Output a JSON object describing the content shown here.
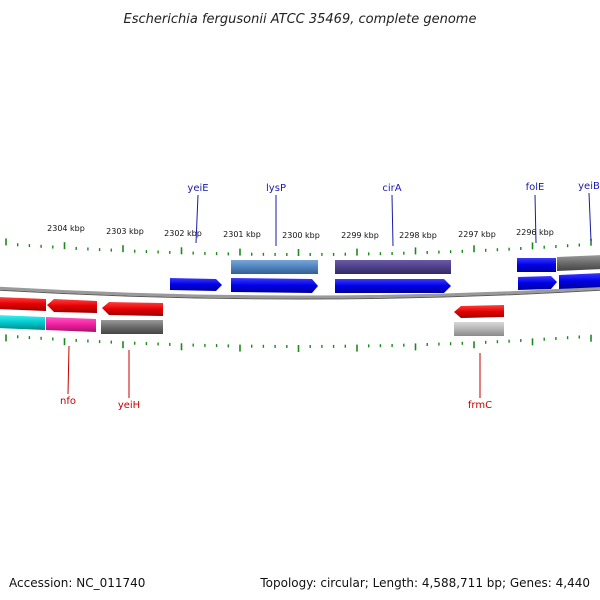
{
  "title": "Escherichia fergusonii ATCC 35469, complete genome",
  "accession": "Accession: NC_011740",
  "topology": "Topology: circular; Length: 4,588,711 bp; Genes: 4,440",
  "colors": {
    "forward_label": "#1a1aa8",
    "reverse_label": "#c40000",
    "tick": "#1a8a1a",
    "backbone": "#7a7a7a"
  },
  "kbp_labels": [
    "2304 kbp",
    "2303 kbp",
    "2302 kbp",
    "2301 kbp",
    "2300 kbp",
    "2299 kbp",
    "2298 kbp",
    "2297 kbp",
    "2296 kbp"
  ],
  "forward_genes": [
    "yeiE",
    "lysP",
    "cirA",
    "folE",
    "yeiB"
  ],
  "reverse_genes": [
    "nfo",
    "yeiH",
    "frmC"
  ]
}
